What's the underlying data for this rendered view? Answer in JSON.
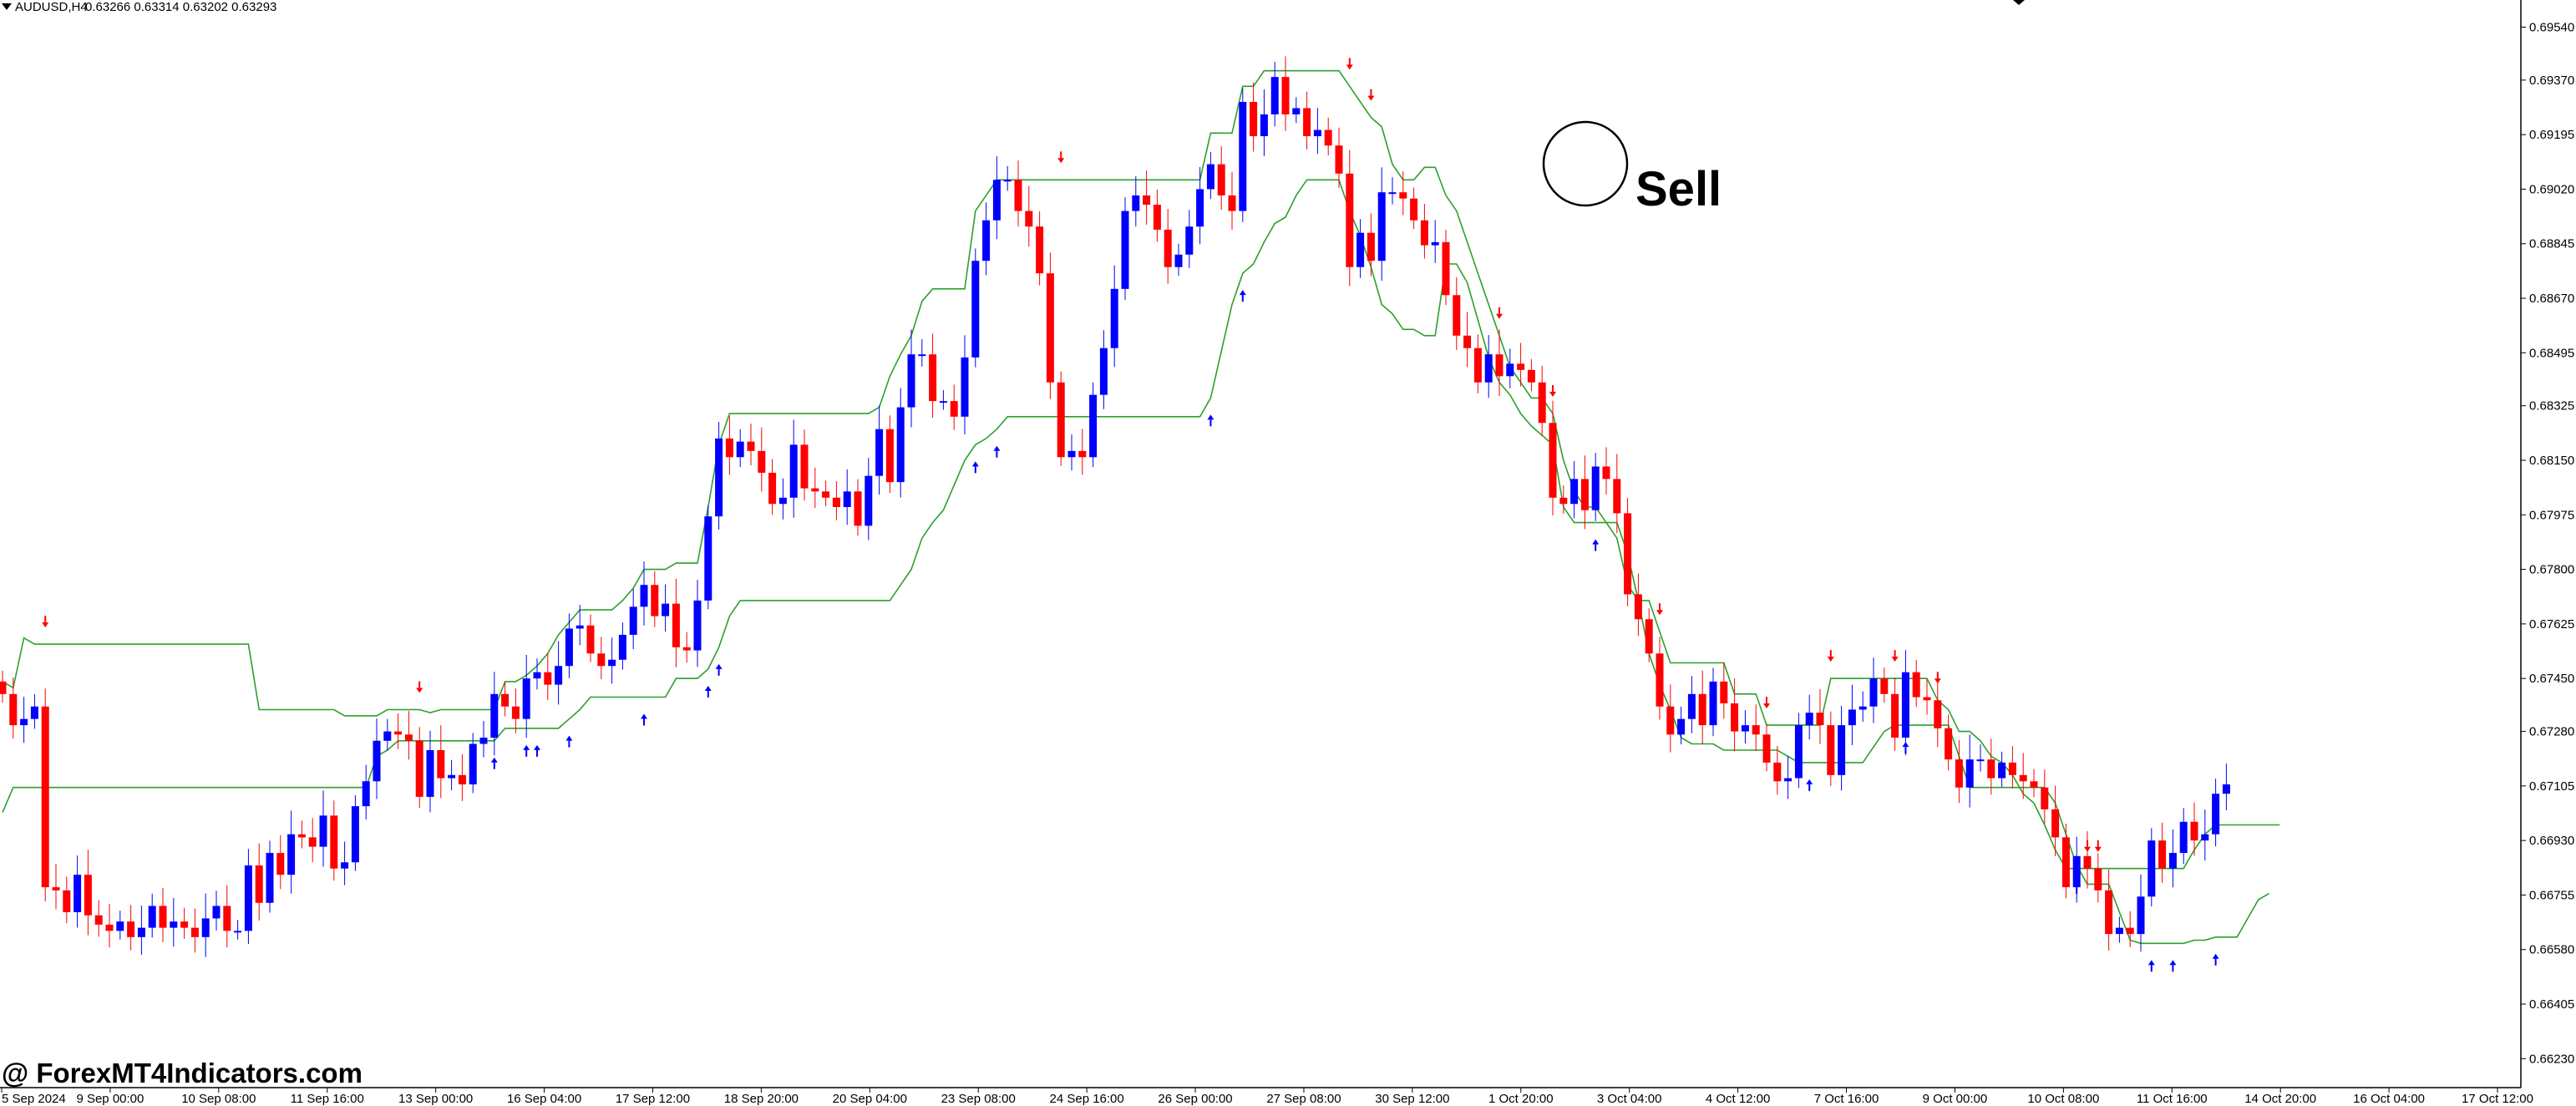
{
  "header": {
    "symbol": "AUDUSD,H4",
    "ohlc": "0.63266 0.63314 0.63202 0.63293"
  },
  "watermark": "@ ForexMT4Indicators.com",
  "annotation": {
    "label": "Sell"
  },
  "colors": {
    "bull": "#0000ff",
    "bear": "#ff0000",
    "channel": "#2ca02c",
    "background": "#ffffff",
    "axis": "#000000"
  },
  "chart_data": {
    "type": "candlestick",
    "title": "",
    "xlabel": "",
    "ylabel": "",
    "ylim": [
      0.66137,
      0.69627
    ],
    "y_ticks": [
      "0.69540",
      "0.69370",
      "0.69195",
      "0.69020",
      "0.68845",
      "0.68670",
      "0.68495",
      "0.68325",
      "0.68150",
      "0.67975",
      "0.67800",
      "0.67625",
      "0.67450",
      "0.67280",
      "0.67105",
      "0.66930",
      "0.66755",
      "0.66580",
      "0.66405",
      "0.66230"
    ],
    "x_ticks": [
      "5 Sep 2024",
      "9 Sep 00:00",
      "10 Sep 08:00",
      "11 Sep 16:00",
      "13 Sep 00:00",
      "16 Sep 04:00",
      "17 Sep 12:00",
      "18 Sep 20:00",
      "20 Sep 04:00",
      "23 Sep 08:00",
      "24 Sep 16:00",
      "26 Sep 00:00",
      "27 Sep 08:00",
      "30 Sep 12:00",
      "1 Oct 20:00",
      "3 Oct 04:00",
      "4 Oct 12:00",
      "7 Oct 16:00",
      "9 Oct 00:00",
      "10 Oct 08:00",
      "11 Oct 16:00",
      "14 Oct 20:00",
      "16 Oct 04:00",
      "17 Oct 12:00"
    ],
    "closes": [
      0.674,
      0.673,
      0.6732,
      0.6736,
      0.6678,
      0.6677,
      0.667,
      0.6682,
      0.6669,
      0.6666,
      0.6664,
      0.6667,
      0.6662,
      0.6665,
      0.6672,
      0.6665,
      0.6667,
      0.6665,
      0.6662,
      0.6668,
      0.6672,
      0.6664,
      0.6664,
      0.6685,
      0.6673,
      0.6689,
      0.6682,
      0.6695,
      0.6694,
      0.6691,
      0.6701,
      0.6684,
      0.6686,
      0.6704,
      0.6712,
      0.6725,
      0.6728,
      0.6727,
      0.6725,
      0.6707,
      0.6722,
      0.6713,
      0.6714,
      0.6711,
      0.6724,
      0.6726,
      0.674,
      0.6736,
      0.6732,
      0.6745,
      0.6747,
      0.6743,
      0.6749,
      0.6761,
      0.6762,
      0.6753,
      0.6749,
      0.6751,
      0.6759,
      0.6768,
      0.6775,
      0.6765,
      0.6769,
      0.6755,
      0.6754,
      0.677,
      0.6797,
      0.6822,
      0.6816,
      0.6821,
      0.6818,
      0.6811,
      0.6801,
      0.6803,
      0.682,
      0.6806,
      0.6805,
      0.6803,
      0.68,
      0.6805,
      0.6794,
      0.681,
      0.6825,
      0.6808,
      0.6832,
      0.6849,
      0.6849,
      0.6834,
      0.6834,
      0.6829,
      0.6848,
      0.6879,
      0.6892,
      0.6905,
      0.6905,
      0.6895,
      0.689,
      0.6875,
      0.684,
      0.6816,
      0.6818,
      0.6816,
      0.6836,
      0.6851,
      0.687,
      0.6895,
      0.69,
      0.6897,
      0.6889,
      0.6877,
      0.6881,
      0.689,
      0.6902,
      0.691,
      0.69,
      0.6895,
      0.693,
      0.6919,
      0.6926,
      0.6938,
      0.6926,
      0.6928,
      0.6919,
      0.6921,
      0.6916,
      0.6907,
      0.6877,
      0.6888,
      0.6879,
      0.6901,
      0.6901,
      0.6899,
      0.6892,
      0.6884,
      0.6885,
      0.6868,
      0.6855,
      0.6851,
      0.684,
      0.6849,
      0.6842,
      0.6846,
      0.6844,
      0.684,
      0.6827,
      0.6803,
      0.6801,
      0.6809,
      0.6799,
      0.6813,
      0.6809,
      0.6798,
      0.6772,
      0.6764,
      0.6753,
      0.6736,
      0.6727,
      0.6732,
      0.674,
      0.673,
      0.6744,
      0.6737,
      0.6728,
      0.673,
      0.6727,
      0.6718,
      0.6712,
      0.6713,
      0.673,
      0.6734,
      0.673,
      0.6714,
      0.673,
      0.6735,
      0.6736,
      0.6745,
      0.674,
      0.6726,
      0.6747,
      0.6739,
      0.6738,
      0.6729,
      0.6719,
      0.671,
      0.6719,
      0.6719,
      0.6713,
      0.6718,
      0.6714,
      0.6712,
      0.671,
      0.6703,
      0.6694,
      0.6678,
      0.6688,
      0.6684,
      0.6677,
      0.6663,
      0.6665,
      0.6663,
      0.6675,
      0.6693,
      0.6684,
      0.6689,
      0.6699,
      0.6693,
      0.6695,
      0.6708,
      0.6711
    ],
    "upper_channel": [
      0.6744,
      0.6742,
      0.6758,
      0.6756,
      0.6756,
      0.6756,
      0.6756,
      0.6756,
      0.6756,
      0.6756,
      0.6756,
      0.6756,
      0.6756,
      0.6756,
      0.6756,
      0.6756,
      0.6756,
      0.6756,
      0.6756,
      0.6756,
      0.6756,
      0.6756,
      0.6756,
      0.6756,
      0.6735,
      0.6735,
      0.6735,
      0.6735,
      0.6735,
      0.6735,
      0.6735,
      0.6735,
      0.6733,
      0.6733,
      0.6733,
      0.6733,
      0.6735,
      0.6735,
      0.6735,
      0.6735,
      0.6734,
      0.6735,
      0.6735,
      0.6735,
      0.6735,
      0.6735,
      0.6735,
      0.6744,
      0.6744,
      0.6746,
      0.6749,
      0.6753,
      0.6759,
      0.6763,
      0.6767,
      0.6767,
      0.6767,
      0.6767,
      0.677,
      0.6774,
      0.678,
      0.678,
      0.678,
      0.6782,
      0.6782,
      0.6782,
      0.68,
      0.682,
      0.683,
      0.683,
      0.683,
      0.683,
      0.683,
      0.683,
      0.683,
      0.683,
      0.683,
      0.683,
      0.683,
      0.683,
      0.683,
      0.683,
      0.6832,
      0.6842,
      0.6849,
      0.6855,
      0.6866,
      0.687,
      0.687,
      0.687,
      0.687,
      0.6895,
      0.69,
      0.6905,
      0.6905,
      0.6905,
      0.6905,
      0.6905,
      0.6905,
      0.6905,
      0.6905,
      0.6905,
      0.6905,
      0.6905,
      0.6905,
      0.6905,
      0.6905,
      0.6905,
      0.6905,
      0.6905,
      0.6905,
      0.6905,
      0.6905,
      0.692,
      0.692,
      0.692,
      0.6935,
      0.6935,
      0.694,
      0.694,
      0.694,
      0.694,
      0.694,
      0.694,
      0.694,
      0.694,
      0.6935,
      0.693,
      0.6925,
      0.6922,
      0.691,
      0.6905,
      0.6905,
      0.6909,
      0.6909,
      0.69,
      0.6895,
      0.6885,
      0.6875,
      0.6865,
      0.6855,
      0.6845,
      0.684,
      0.6835,
      0.6835,
      0.683,
      0.6815,
      0.6805,
      0.68,
      0.68,
      0.6795,
      0.679,
      0.6775,
      0.677,
      0.677,
      0.676,
      0.675,
      0.675,
      0.675,
      0.675,
      0.675,
      0.675,
      0.674,
      0.674,
      0.674,
      0.673,
      0.673,
      0.673,
      0.673,
      0.673,
      0.673,
      0.6745,
      0.6745,
      0.6745,
      0.6745,
      0.6745,
      0.6745,
      0.6745,
      0.6745,
      0.6745,
      0.6745,
      0.6738,
      0.6735,
      0.6728,
      0.6728,
      0.6725,
      0.672,
      0.6718,
      0.6714,
      0.6708,
      0.6705,
      0.6698,
      0.669,
      0.6684,
      0.6684,
      0.6684,
      0.6684,
      0.6684,
      0.6684,
      0.6684,
      0.6684,
      0.6684,
      0.6684,
      0.6684,
      0.6684,
      0.669,
      0.6695,
      0.6698,
      0.6698,
      0.6698,
      0.6698,
      0.6698,
      0.6698,
      0.6698
    ],
    "lower_channel": [
      0.6702,
      0.671,
      0.671,
      0.671,
      0.671,
      0.671,
      0.671,
      0.671,
      0.671,
      0.671,
      0.671,
      0.671,
      0.671,
      0.671,
      0.671,
      0.671,
      0.671,
      0.671,
      0.671,
      0.671,
      0.671,
      0.671,
      0.671,
      0.671,
      0.671,
      0.671,
      0.671,
      0.671,
      0.671,
      0.671,
      0.671,
      0.671,
      0.671,
      0.671,
      0.671,
      0.672,
      0.6722,
      0.6725,
      0.6725,
      0.6725,
      0.6725,
      0.6725,
      0.6725,
      0.6725,
      0.6725,
      0.6725,
      0.6725,
      0.6729,
      0.6729,
      0.6729,
      0.6729,
      0.6729,
      0.6729,
      0.6732,
      0.6735,
      0.6739,
      0.6739,
      0.6739,
      0.6739,
      0.6739,
      0.6739,
      0.6739,
      0.6739,
      0.6745,
      0.6745,
      0.6745,
      0.6748,
      0.6755,
      0.6765,
      0.677,
      0.677,
      0.677,
      0.677,
      0.677,
      0.677,
      0.677,
      0.677,
      0.677,
      0.677,
      0.677,
      0.677,
      0.677,
      0.677,
      0.677,
      0.6775,
      0.678,
      0.679,
      0.6795,
      0.6799,
      0.6807,
      0.6815,
      0.682,
      0.6822,
      0.6825,
      0.6829,
      0.6829,
      0.6829,
      0.6829,
      0.6829,
      0.6829,
      0.6829,
      0.6829,
      0.6829,
      0.6829,
      0.6829,
      0.6829,
      0.6829,
      0.6829,
      0.6829,
      0.6829,
      0.6829,
      0.6829,
      0.6829,
      0.6835,
      0.685,
      0.6865,
      0.6875,
      0.6878,
      0.6885,
      0.6891,
      0.6893,
      0.69,
      0.6905,
      0.6905,
      0.6905,
      0.6905,
      0.6895,
      0.6887,
      0.6877,
      0.6865,
      0.6862,
      0.6857,
      0.6857,
      0.6855,
      0.6855,
      0.6878,
      0.6878,
      0.6872,
      0.686,
      0.6848,
      0.684,
      0.6836,
      0.683,
      0.6826,
      0.6823,
      0.682,
      0.68,
      0.6795,
      0.6795,
      0.6795,
      0.6795,
      0.6795,
      0.6785,
      0.677,
      0.6753,
      0.6743,
      0.6735,
      0.6726,
      0.6724,
      0.6724,
      0.6724,
      0.6722,
      0.6722,
      0.6722,
      0.6722,
      0.6722,
      0.6722,
      0.672,
      0.6718,
      0.6718,
      0.6718,
      0.6718,
      0.6718,
      0.6718,
      0.6718,
      0.6723,
      0.6728,
      0.673,
      0.673,
      0.673,
      0.673,
      0.673,
      0.673,
      0.672,
      0.671,
      0.671,
      0.671,
      0.671,
      0.671,
      0.671,
      0.671,
      0.671,
      0.6705,
      0.6695,
      0.6685,
      0.6679,
      0.6679,
      0.6679,
      0.667,
      0.6661,
      0.666,
      0.666,
      0.666,
      0.666,
      0.666,
      0.6661,
      0.6661,
      0.6662,
      0.6662,
      0.6662,
      0.6668,
      0.6674,
      0.6676
    ]
  }
}
